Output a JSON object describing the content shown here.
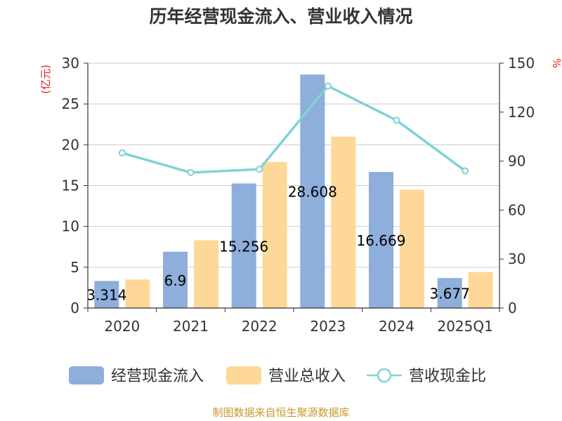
{
  "title": "历年经营现金流入、营业收入情况",
  "footer": "制图数据来自恒生聚源数据库",
  "colors": {
    "cash_inflow": "#8eaedb",
    "revenue": "#fed898",
    "ratio": "#7fd3d6",
    "axis_unit": "#e02020",
    "axis": "#333333",
    "grid": "#cccccc"
  },
  "chart_data": {
    "type": "bar",
    "title": "历年经营现金流入、营业收入情况",
    "categories": [
      "2020",
      "2021",
      "2022",
      "2023",
      "2024",
      "2025Q1"
    ],
    "series": [
      {
        "name": "经营现金流入",
        "type": "bar",
        "axis": "left",
        "values": [
          3.314,
          6.9,
          15.256,
          28.608,
          16.669,
          3.677
        ],
        "labels": [
          "3.314",
          "6.9",
          "15.256",
          "28.608",
          "16.669",
          "3.677"
        ]
      },
      {
        "name": "营业总收入",
        "type": "bar",
        "axis": "left",
        "values": [
          3.5,
          8.3,
          17.9,
          21.0,
          14.5,
          4.4
        ]
      },
      {
        "name": "营收现金比",
        "type": "line",
        "axis": "right",
        "values": [
          95,
          83,
          85,
          136,
          115,
          84
        ]
      }
    ],
    "y_left": {
      "unit": "(亿元)",
      "min": 0,
      "max": 30,
      "ticks": [
        0,
        5,
        10,
        15,
        20,
        25,
        30
      ],
      "tick_labels": [
        "0",
        "5",
        "10",
        "15",
        "20",
        "25",
        "30"
      ]
    },
    "y_right": {
      "unit": "%",
      "min": 0,
      "max": 150,
      "ticks": [
        0,
        30,
        60,
        90,
        120,
        150
      ],
      "tick_labels": [
        "0",
        "30",
        "60",
        "90",
        "120",
        "150"
      ]
    },
    "grid": true,
    "legend_position": "bottom"
  }
}
